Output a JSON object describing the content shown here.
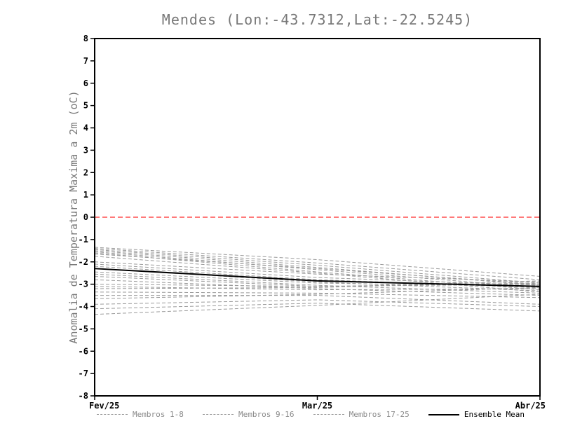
{
  "chart_data": {
    "type": "line",
    "title": "Mendes (Lon:-43.7312,Lat:-22.5245)",
    "ylabel": "Anomalia de Temperatura Maxima a 2m (oC)",
    "xlabel": "",
    "ylim": [
      -8,
      8
    ],
    "ytick_step": 1,
    "grid": false,
    "x_tick_labels": [
      "Fev/25",
      "Mar/25",
      "Abr/25"
    ],
    "x_tick_positions": [
      0,
      0.5,
      1
    ],
    "zero_line": {
      "y": 0,
      "color": "#ff2a2a",
      "style": "dashed"
    },
    "member_color": "#9a9a9a",
    "mean_color": "#000000",
    "x": [
      0,
      0.5,
      1
    ],
    "series": [
      {
        "name": "Membro 1",
        "group": "members",
        "values": [
          -1.35,
          -1.9,
          -2.65
        ]
      },
      {
        "name": "Membro 2",
        "group": "members",
        "values": [
          -1.4,
          -2.05,
          -2.8
        ]
      },
      {
        "name": "Membro 3",
        "group": "members",
        "values": [
          -1.45,
          -2.15,
          -2.95
        ]
      },
      {
        "name": "Membro 4",
        "group": "members",
        "values": [
          -1.5,
          -2.25,
          -3.05
        ]
      },
      {
        "name": "Membro 5",
        "group": "members",
        "values": [
          -1.55,
          -2.35,
          -3.15
        ]
      },
      {
        "name": "Membro 6",
        "group": "members",
        "values": [
          -1.6,
          -2.45,
          -3.25
        ]
      },
      {
        "name": "Membro 7",
        "group": "members",
        "values": [
          -1.65,
          -2.3,
          -3.0
        ]
      },
      {
        "name": "Membro 8",
        "group": "members",
        "values": [
          -1.75,
          -2.5,
          -3.35
        ]
      },
      {
        "name": "Membro 9",
        "group": "members",
        "values": [
          -2.0,
          -2.55,
          -2.9
        ]
      },
      {
        "name": "Membro 10",
        "group": "members",
        "values": [
          -2.1,
          -2.7,
          -3.05
        ]
      },
      {
        "name": "Membro 11",
        "group": "members",
        "values": [
          -2.2,
          -2.8,
          -3.15
        ]
      },
      {
        "name": "Membro 12",
        "group": "members",
        "values": [
          -2.3,
          -2.9,
          -3.3
        ]
      },
      {
        "name": "Membro 13",
        "group": "members",
        "values": [
          -2.45,
          -2.95,
          -3.1
        ]
      },
      {
        "name": "Membro 14",
        "group": "members",
        "values": [
          -2.55,
          -3.05,
          -3.4
        ]
      },
      {
        "name": "Membro 15",
        "group": "members",
        "values": [
          -2.65,
          -3.1,
          -2.95
        ]
      },
      {
        "name": "Membro 16",
        "group": "members",
        "values": [
          -2.8,
          -3.2,
          -3.5
        ]
      },
      {
        "name": "Membro 17",
        "group": "members",
        "values": [
          -3.0,
          -3.1,
          -3.0
        ]
      },
      {
        "name": "Membro 18",
        "group": "members",
        "values": [
          -3.1,
          -3.25,
          -3.2
        ]
      },
      {
        "name": "Membro 19",
        "group": "members",
        "values": [
          -3.2,
          -3.15,
          -2.85
        ]
      },
      {
        "name": "Membro 20",
        "group": "members",
        "values": [
          -3.35,
          -3.4,
          -3.6
        ]
      },
      {
        "name": "Membro 21",
        "group": "members",
        "values": [
          -3.5,
          -3.5,
          -3.9
        ]
      },
      {
        "name": "Membro 22",
        "group": "members",
        "values": [
          -3.65,
          -3.45,
          -3.15
        ]
      },
      {
        "name": "Membro 23",
        "group": "members",
        "values": [
          -3.9,
          -3.7,
          -4.0
        ]
      },
      {
        "name": "Membro 24",
        "group": "members",
        "values": [
          -4.1,
          -3.85,
          -4.2
        ]
      },
      {
        "name": "Membro 25",
        "group": "members",
        "values": [
          -4.35,
          -3.95,
          -3.45
        ]
      },
      {
        "name": "Ensemble Mean",
        "group": "mean",
        "values": [
          -2.3,
          -2.85,
          -3.1
        ]
      }
    ],
    "legend": [
      {
        "label": "Membros 1-8",
        "style": "dashed",
        "color": "#9a9a9a"
      },
      {
        "label": "Membros 9-16",
        "style": "dashed",
        "color": "#9a9a9a"
      },
      {
        "label": "Membros 17-25",
        "style": "dashed",
        "color": "#9a9a9a"
      },
      {
        "label": "Ensemble Mean",
        "style": "solid",
        "color": "#000000"
      }
    ],
    "legend_position": "bottom"
  }
}
